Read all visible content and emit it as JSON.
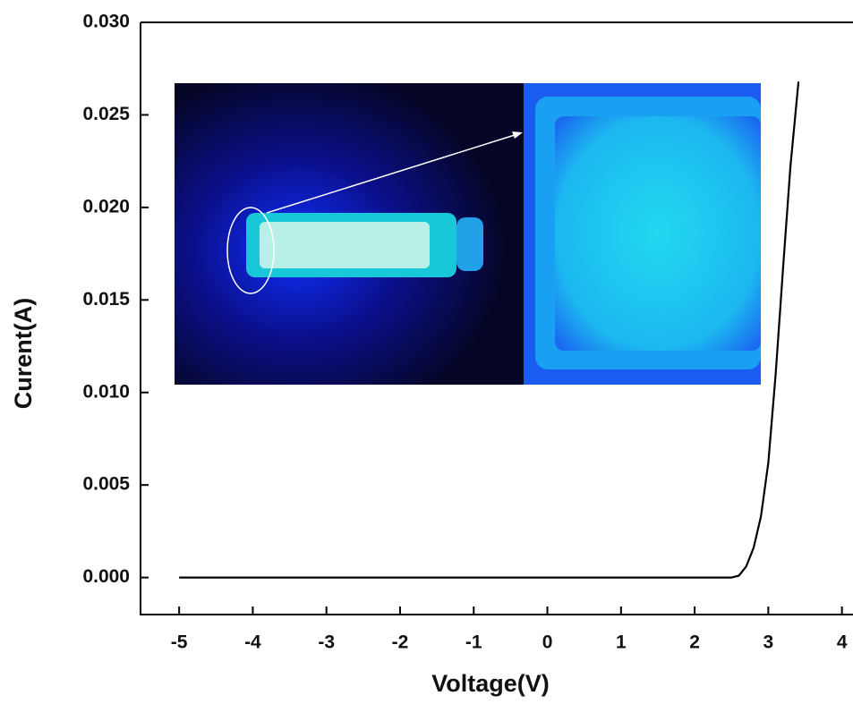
{
  "chart_data": {
    "type": "line",
    "x_label": "Voltage(V)",
    "y_label": "Curent(A)",
    "x": [
      -5,
      -4,
      -3,
      -2,
      -1,
      0,
      1,
      2,
      2.5,
      2.6,
      2.7,
      2.8,
      2.9,
      3.0,
      3.1,
      3.2,
      3.3,
      3.41
    ],
    "series": [
      {
        "color": "#000000",
        "values": [
          0,
          0,
          0,
          0,
          0,
          0,
          0,
          0,
          0,
          0.0001,
          0.0006,
          0.0016,
          0.0033,
          0.0062,
          0.011,
          0.0167,
          0.0222,
          0.0268
        ]
      }
    ],
    "xlim": [
      -5.5,
      4.15
    ],
    "xticks": [
      -5,
      -4,
      -3,
      -2,
      -1,
      0,
      1,
      2,
      3,
      4
    ],
    "ylim": [
      -0.002,
      0.03
    ],
    "yticks": [
      {
        "value": 0,
        "label": "0.000"
      },
      {
        "value": 0.005,
        "label": "0.005"
      },
      {
        "value": 0.01,
        "label": "0.010"
      },
      {
        "value": 0.015,
        "label": "0.015"
      },
      {
        "value": 0.02,
        "label": "0.020"
      },
      {
        "value": 0.025,
        "label": "0.025"
      },
      {
        "value": 0.03,
        "label": "0.030"
      }
    ]
  }
}
